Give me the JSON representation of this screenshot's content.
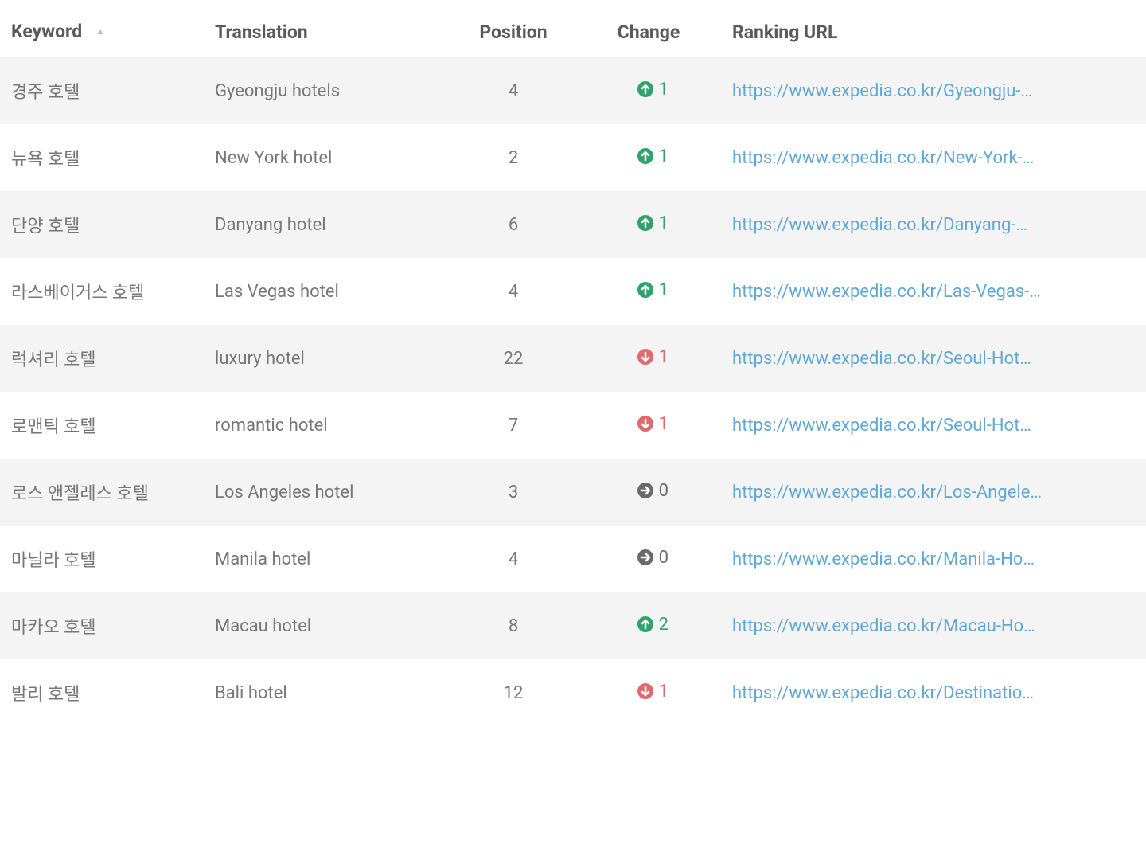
{
  "colors": {
    "up": "#2fa36b",
    "down": "#e06a6a",
    "none": "#6a6a6a",
    "link": "#5fa8d3",
    "headerText": "#5a5a5a",
    "bodyText": "#777777",
    "rowEven": "#f4f4f4",
    "rowOdd": "#ffffff",
    "sortIndicator": "#bfbfbf"
  },
  "table": {
    "headers": {
      "keyword": "Keyword",
      "translation": "Translation",
      "position": "Position",
      "change": "Change",
      "url": "Ranking URL"
    },
    "sortColumn": "keyword",
    "sortDirection": "asc",
    "rows": [
      {
        "keyword": "경주 호텔",
        "translation": "Gyeongju hotels",
        "position": "4",
        "changeDir": "up",
        "changeVal": "1",
        "url": "https://www.expedia.co.kr/Gyeongju-…"
      },
      {
        "keyword": "뉴욕 호텔",
        "translation": "New York hotel",
        "position": "2",
        "changeDir": "up",
        "changeVal": "1",
        "url": "https://www.expedia.co.kr/New-York-…"
      },
      {
        "keyword": "단양 호텔",
        "translation": "Danyang hotel",
        "position": "6",
        "changeDir": "up",
        "changeVal": "1",
        "url": "https://www.expedia.co.kr/Danyang-…"
      },
      {
        "keyword": "라스베이거스 호텔",
        "translation": "Las Vegas hotel",
        "position": "4",
        "changeDir": "up",
        "changeVal": "1",
        "url": "https://www.expedia.co.kr/Las-Vegas-…"
      },
      {
        "keyword": "럭셔리 호텔",
        "translation": "luxury hotel",
        "position": "22",
        "changeDir": "down",
        "changeVal": "1",
        "url": "https://www.expedia.co.kr/Seoul-Hot…"
      },
      {
        "keyword": "로맨틱 호텔",
        "translation": "romantic hotel",
        "position": "7",
        "changeDir": "down",
        "changeVal": "1",
        "url": "https://www.expedia.co.kr/Seoul-Hot…"
      },
      {
        "keyword": "로스 앤젤레스 호텔",
        "translation": "Los Angeles hotel",
        "position": "3",
        "changeDir": "none",
        "changeVal": "0",
        "url": "https://www.expedia.co.kr/Los-Angele…"
      },
      {
        "keyword": "마닐라 호텔",
        "translation": "Manila hotel",
        "position": "4",
        "changeDir": "none",
        "changeVal": "0",
        "url": "https://www.expedia.co.kr/Manila-Ho…"
      },
      {
        "keyword": "마카오 호텔",
        "translation": "Macau hotel",
        "position": "8",
        "changeDir": "up",
        "changeVal": "2",
        "url": "https://www.expedia.co.kr/Macau-Ho…"
      },
      {
        "keyword": "발리 호텔",
        "translation": "Bali hotel",
        "position": "12",
        "changeDir": "down",
        "changeVal": "1",
        "url": "https://www.expedia.co.kr/Destinatio…"
      }
    ]
  }
}
